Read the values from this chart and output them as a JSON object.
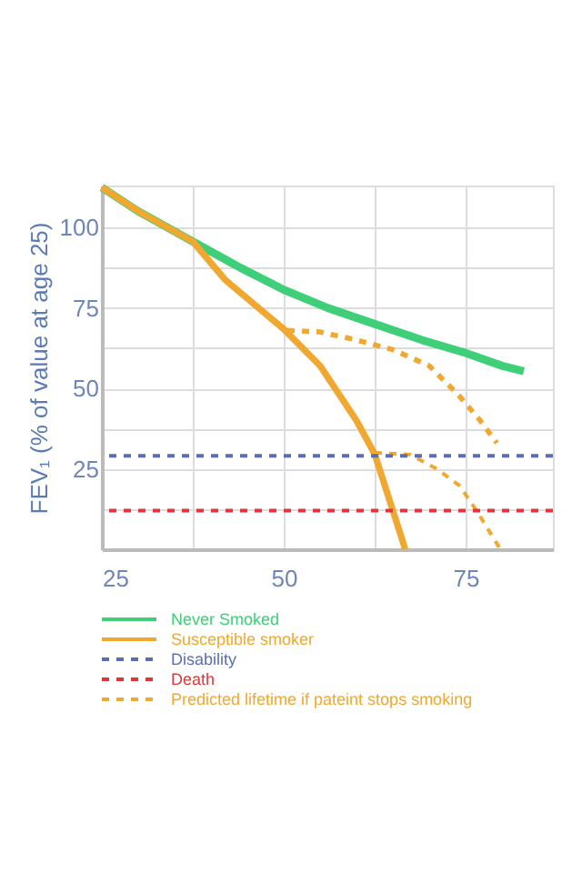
{
  "chart_data": {
    "type": "line",
    "ylabel": "FEV₁ (% of value at age 25)",
    "xlim": [
      25,
      87
    ],
    "xticks": [
      25,
      {
        "value": 37.5,
        "label": null
      },
      50,
      {
        "value": 62.5,
        "label": null
      },
      75
    ],
    "ylim": [
      0,
      113
    ],
    "yticks": [
      {
        "value": 12.5,
        "label": null
      },
      25,
      {
        "value": 37.5,
        "label": null
      },
      50,
      {
        "value": 62.5,
        "label": null
      },
      75,
      {
        "value": 87.5,
        "label": null
      },
      100
    ],
    "grid": true,
    "legend": "bottom",
    "series": [
      {
        "name": "Never Smoked",
        "color": "#3fcf78",
        "line_style": "solid",
        "x": [
          25,
          30,
          37.5,
          44,
          50,
          56,
          62.5,
          69,
          75,
          80,
          83
        ],
        "values": [
          112.4,
          105,
          95.6,
          87.5,
          80.6,
          75,
          70,
          65,
          61,
          57,
          55.3
        ]
      },
      {
        "name": "Susceptible smoker",
        "color": "#f0a830",
        "line_style": "solid",
        "x": [
          25,
          30,
          37.5,
          42,
          46,
          50,
          55,
          60,
          62.5,
          65,
          66.7
        ],
        "values": [
          112.4,
          105,
          95.6,
          83.6,
          76,
          68.4,
          57,
          40,
          29.6,
          12,
          0
        ]
      },
      {
        "name": "Predicted lifetime if pateint stops smoking",
        "color": "#f0a830",
        "line_style": "dashed",
        "x": [
          50.5,
          55,
          60,
          65,
          70,
          74,
          77,
          79.3
        ],
        "values": [
          68,
          67.5,
          65,
          62,
          57,
          48,
          40,
          33
        ]
      },
      {
        "color": "#f0a830",
        "line_style": "dashed",
        "x": [
          62.5,
          67.4,
          71,
          74.2,
          76.7,
          78.5,
          79.6
        ],
        "values": [
          30,
          29.4,
          25,
          19.7,
          11.3,
          4.7,
          0.6
        ]
      }
    ],
    "ref_lines": [
      {
        "axis": "y",
        "value": 29,
        "label": "Disability",
        "color": "#5b6fb0",
        "line_style": "dashed"
      },
      {
        "axis": "y",
        "value": 12,
        "label": "Death",
        "color": "#e0353a",
        "line_style": "dashed"
      }
    ]
  }
}
